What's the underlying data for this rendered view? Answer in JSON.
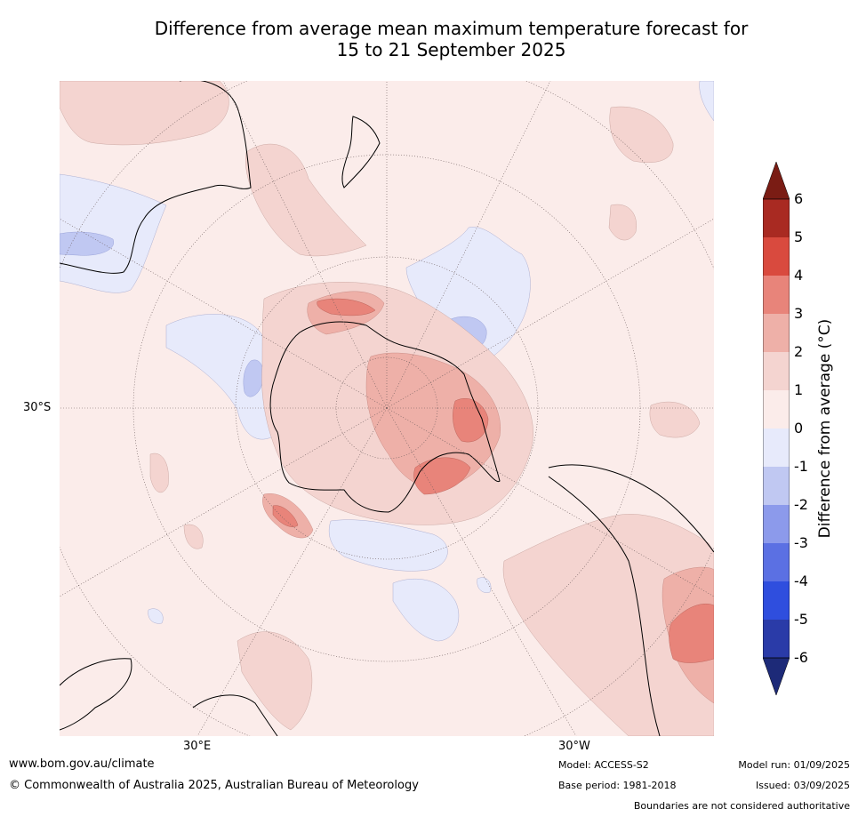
{
  "title_line1": "Difference from average mean maximum temperature forecast for",
  "title_line2": "15 to 21 September 2025",
  "map": {
    "projection": "south-polar-stereographic",
    "lat_label": "30°S",
    "lon_labels": {
      "east": "30°E",
      "west": "30°W"
    },
    "graticule": "dotted"
  },
  "colorbar": {
    "label": "Difference from average (°C)",
    "ticks": [
      "6",
      "5",
      "4",
      "3",
      "2",
      "1",
      "0",
      "-1",
      "-2",
      "-3",
      "-4",
      "-5",
      "-6"
    ],
    "colors": {
      "over": "#7a1c14",
      "5_to_6": "#a92a22",
      "4_to_5": "#d94a3e",
      "3_to_4": "#e8847a",
      "2_to_3": "#eeb0a8",
      "1_to_2": "#f4d4d0",
      "0_to_1": "#fbecea",
      "m1_to_0": "#e7eafb",
      "m2_to_m1": "#c0c8f2",
      "m3_to_m2": "#8c9aeb",
      "m4_to_m3": "#5b70e3",
      "m5_to_m4": "#2f4ede",
      "m6_to_m5": "#2a3ba8",
      "under": "#1d2a78"
    }
  },
  "footer": {
    "website": "www.bom.gov.au/climate",
    "copyright": "© Commonwealth of Australia 2025, Australian Bureau of Meteorology",
    "model": "Model: ACCESS-S2",
    "base_period": "Base period: 1981-2018",
    "model_run": "Model run: 01/09/2025",
    "issued": "Issued: 03/09/2025",
    "disclaimer": "Boundaries are not considered authoritative"
  }
}
